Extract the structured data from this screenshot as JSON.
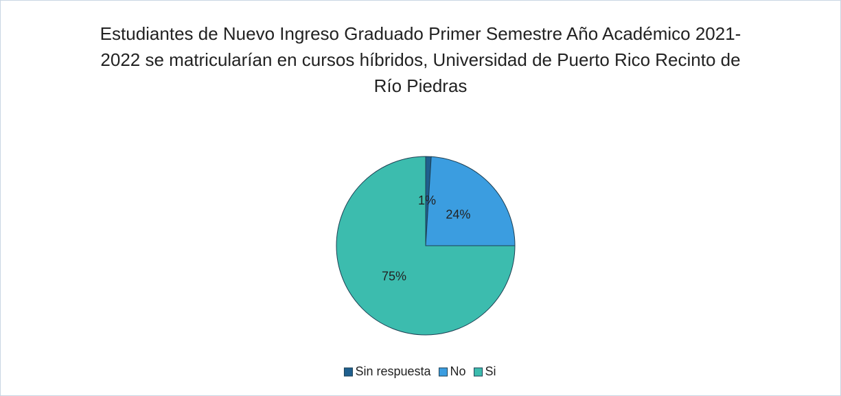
{
  "chart_data": {
    "type": "pie",
    "title": "Estudiantes de Nuevo Ingreso Graduado Primer Semestre Año Académico 2021-2022 se  matricularían en cursos híbridos, Universidad de Puerto Rico Recinto de Río Piedras",
    "categories": [
      "Sin respuesta",
      "No",
      "Si"
    ],
    "values": [
      1,
      24,
      75
    ],
    "value_labels": [
      "1%",
      "24%",
      "75%"
    ],
    "colors": [
      "#1f5f8e",
      "#3b9de0",
      "#3cbcae"
    ],
    "legend": "bottom"
  }
}
